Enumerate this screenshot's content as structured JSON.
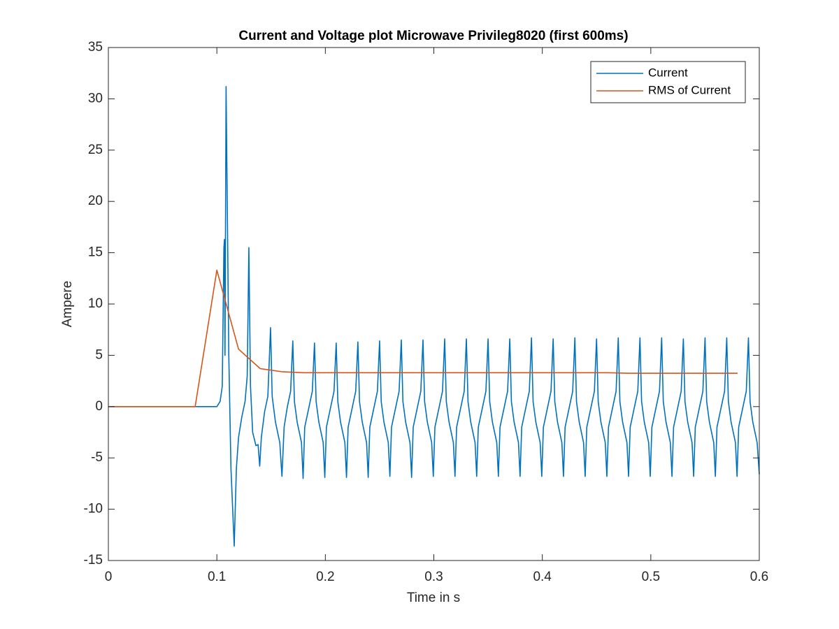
{
  "chart_data": {
    "type": "line",
    "title": "Current and Voltage plot Microwave Privileg8020 (first 600ms)",
    "xlabel": "Time in s",
    "ylabel": "Ampere",
    "xlim": [
      0,
      0.6
    ],
    "xticks": [
      0,
      0.1,
      0.2,
      0.3,
      0.4,
      0.5,
      0.6
    ],
    "ylim": [
      -15,
      35
    ],
    "yticks": [
      -15,
      -10,
      -5,
      0,
      5,
      10,
      15,
      20,
      25,
      30,
      35
    ],
    "legend": "northeast",
    "series": [
      {
        "name": "Current",
        "color": "#0072bd",
        "x": [
          0,
          0.1,
          0.103,
          0.105,
          0.1065,
          0.107,
          0.1075,
          0.1085,
          0.111,
          0.113,
          0.116,
          0.118,
          0.12,
          0.123,
          0.126,
          0.128,
          0.1295,
          0.131,
          0.133,
          0.136,
          0.138,
          0.1395,
          0.141,
          0.144,
          0.147,
          0.1495,
          0.151,
          0.154,
          0.158,
          0.16,
          0.162,
          0.165,
          0.168,
          0.17,
          0.1715,
          0.174,
          0.178,
          0.1795,
          0.181,
          0.185,
          0.188,
          0.19,
          0.1915,
          0.194,
          0.198,
          0.1995,
          0.201,
          0.205,
          0.208,
          0.21,
          0.2115,
          0.214,
          0.218,
          0.2195,
          0.221,
          0.225,
          0.228,
          0.23,
          0.2315,
          0.234,
          0.238,
          0.2395,
          0.241,
          0.245,
          0.248,
          0.25,
          0.2515,
          0.254,
          0.258,
          0.2595,
          0.261,
          0.265,
          0.268,
          0.27,
          0.2715,
          0.274,
          0.278,
          0.2795,
          0.281,
          0.285,
          0.288,
          0.29,
          0.2915,
          0.294,
          0.298,
          0.2995,
          0.301,
          0.305,
          0.308,
          0.31,
          0.3115,
          0.314,
          0.318,
          0.3195,
          0.321,
          0.325,
          0.328,
          0.33,
          0.3315,
          0.334,
          0.338,
          0.3395,
          0.341,
          0.345,
          0.348,
          0.35,
          0.3515,
          0.354,
          0.358,
          0.3595,
          0.361,
          0.365,
          0.368,
          0.37,
          0.3715,
          0.374,
          0.378,
          0.3795,
          0.381,
          0.385,
          0.388,
          0.39,
          0.3915,
          0.394,
          0.398,
          0.3995,
          0.401,
          0.405,
          0.408,
          0.41,
          0.4115,
          0.414,
          0.418,
          0.4195,
          0.421,
          0.425,
          0.428,
          0.43,
          0.4315,
          0.434,
          0.438,
          0.4395,
          0.441,
          0.445,
          0.448,
          0.45,
          0.4515,
          0.454,
          0.458,
          0.4595,
          0.461,
          0.465,
          0.468,
          0.47,
          0.4715,
          0.474,
          0.478,
          0.4795,
          0.481,
          0.485,
          0.488,
          0.49,
          0.4915,
          0.494,
          0.498,
          0.4995,
          0.501,
          0.505,
          0.508,
          0.51,
          0.5115,
          0.514,
          0.518,
          0.5195,
          0.521,
          0.525,
          0.528,
          0.53,
          0.5315,
          0.534,
          0.538,
          0.5395,
          0.541,
          0.545,
          0.548,
          0.55,
          0.5515,
          0.554,
          0.558,
          0.5595,
          0.561,
          0.565,
          0.568,
          0.57,
          0.5715,
          0.574,
          0.578,
          0.5795,
          0.581,
          0.585,
          0.588,
          0.59,
          0.5915,
          0.594,
          0.598,
          0.6
        ],
        "values": [
          0,
          0,
          0.5,
          2,
          15.5,
          16.3,
          5,
          31.2,
          5,
          -6,
          -13.6,
          -6,
          -3,
          -1,
          0.5,
          3,
          15.5,
          2,
          -2.5,
          -3.8,
          -3.7,
          -5.8,
          -3,
          -0.5,
          1,
          7.7,
          1,
          -1.5,
          -3.5,
          -6.8,
          -2,
          0,
          1.5,
          6.4,
          0.5,
          -1.5,
          -3.5,
          -7.0,
          -2,
          0,
          1.5,
          6.2,
          0.5,
          -1.5,
          -3.5,
          -6.9,
          -2,
          0,
          1.5,
          6.2,
          0.5,
          -1.5,
          -3.5,
          -6.9,
          -2,
          0,
          1.5,
          6.3,
          0.5,
          -1.5,
          -3.5,
          -6.9,
          -2,
          0,
          1.5,
          6.4,
          0.5,
          -1.5,
          -3.5,
          -6.8,
          -2,
          0,
          1.5,
          6.5,
          0.5,
          -1.5,
          -3.5,
          -6.9,
          -2,
          0,
          1.5,
          6.5,
          0.5,
          -1.5,
          -3.5,
          -6.8,
          -2,
          0,
          1.5,
          6.6,
          0.5,
          -1.5,
          -3.5,
          -6.8,
          -2,
          0,
          1.5,
          6.6,
          0.5,
          -1.5,
          -3.5,
          -6.8,
          -2,
          0,
          1.5,
          6.6,
          0.5,
          -1.5,
          -3.5,
          -6.8,
          -2,
          0,
          1.5,
          6.6,
          0.5,
          -1.5,
          -3.5,
          -6.8,
          -2,
          0,
          1.5,
          6.7,
          0.5,
          -1.5,
          -3.5,
          -6.8,
          -2,
          0,
          1.5,
          6.6,
          0.5,
          -1.5,
          -3.5,
          -6.8,
          -2,
          0,
          1.5,
          6.7,
          0.5,
          -1.5,
          -3.5,
          -6.8,
          -2,
          0,
          1.5,
          6.6,
          0.5,
          -1.5,
          -3.5,
          -6.8,
          -2,
          0,
          1.5,
          6.7,
          0.5,
          -1.5,
          -3.5,
          -6.8,
          -2,
          0,
          1.5,
          6.7,
          0.5,
          -1.5,
          -3.5,
          -6.8,
          -2,
          0,
          1.5,
          6.7,
          0.5,
          -1.5,
          -3.5,
          -6.8,
          -2,
          0,
          1.5,
          6.6,
          0.5,
          -1.5,
          -3.5,
          -6.8,
          -2,
          0,
          1.5,
          6.7,
          0.5,
          -1.5,
          -3.5,
          -6.8,
          -2,
          0,
          1.5,
          6.7,
          0.5,
          -1.5,
          -3.5,
          -6.8,
          -2,
          0,
          1.5,
          6.7,
          0.5,
          -1.5,
          -3.5,
          -6.6
        ]
      },
      {
        "name": "RMS of Current",
        "color": "#d95319",
        "x": [
          0,
          0.08,
          0.1,
          0.12,
          0.14,
          0.16,
          0.18,
          0.2,
          0.22,
          0.24,
          0.26,
          0.28,
          0.3,
          0.32,
          0.34,
          0.36,
          0.38,
          0.4,
          0.42,
          0.44,
          0.46,
          0.48,
          0.5,
          0.52,
          0.54,
          0.56,
          0.58
        ],
        "values": [
          0,
          0,
          13.3,
          5.6,
          3.7,
          3.4,
          3.3,
          3.3,
          3.3,
          3.3,
          3.3,
          3.3,
          3.3,
          3.3,
          3.3,
          3.3,
          3.3,
          3.3,
          3.3,
          3.3,
          3.3,
          3.25,
          3.25,
          3.25,
          3.25,
          3.25,
          3.25
        ]
      }
    ]
  }
}
